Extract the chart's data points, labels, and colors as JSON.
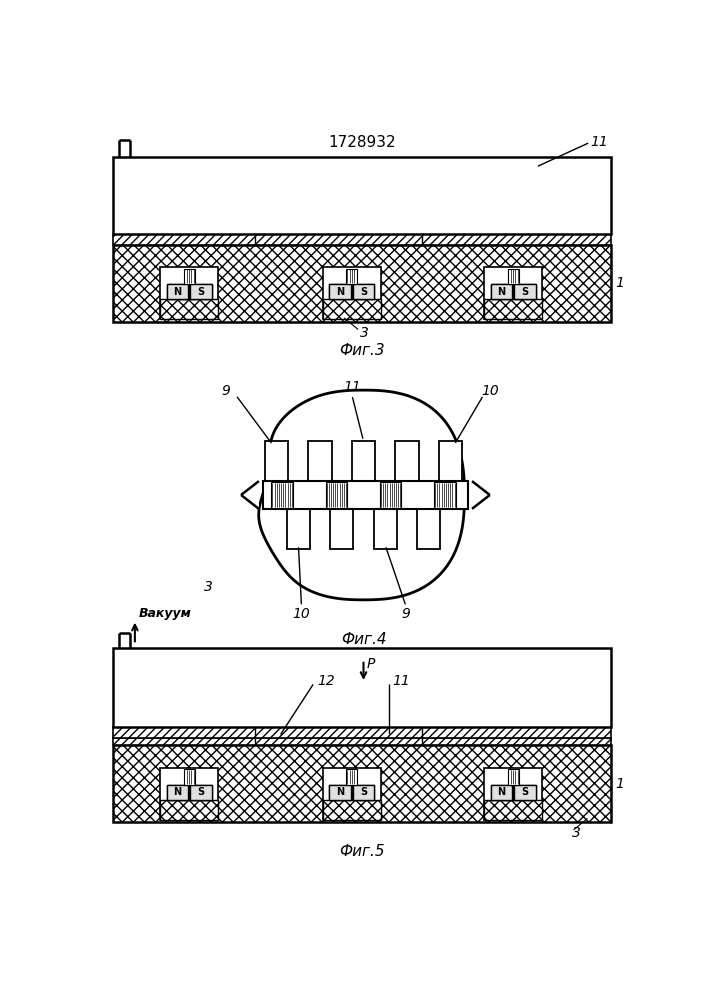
{
  "title": "1728932",
  "fig3_label": "Фиг.3",
  "fig4_label": "Фиг.4",
  "fig5_label": "Фиг.5",
  "bg_color": "#ffffff",
  "line_color": "#000000"
}
